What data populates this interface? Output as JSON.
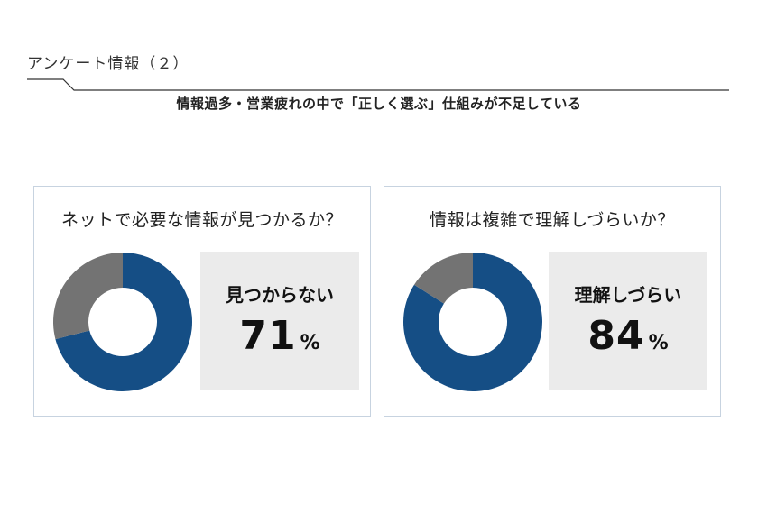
{
  "header": {
    "label": "アンケート情報（２）",
    "subtitle": "情報過多・営業疲れの中で「正しく選ぶ」仕組みが不足している"
  },
  "colors": {
    "primary": "#154e85",
    "secondary": "#737373",
    "panel_border": "#c7d3e0",
    "result_bg": "#ebebeb"
  },
  "panels": [
    {
      "question": "ネットで必要な情報が見つかるか？",
      "result_label": "見つからない",
      "result_value": "71",
      "result_unit": "%"
    },
    {
      "question": "情報は複雑で理解しづらいか？",
      "result_label": "理解しづらい",
      "result_value": "84",
      "result_unit": "%"
    }
  ],
  "chart_data": [
    {
      "type": "pie",
      "title": "ネットで必要な情報が見つかるか？",
      "slices": [
        {
          "label": "見つからない",
          "value": 71,
          "color": "#154e85"
        },
        {
          "label": "",
          "value": 29,
          "color": "#737373"
        }
      ]
    },
    {
      "type": "pie",
      "title": "情報は複雑で理解しづらいか？",
      "slices": [
        {
          "label": "理解しづらい",
          "value": 84,
          "color": "#154e85"
        },
        {
          "label": "",
          "value": 16,
          "color": "#737373"
        }
      ]
    }
  ]
}
